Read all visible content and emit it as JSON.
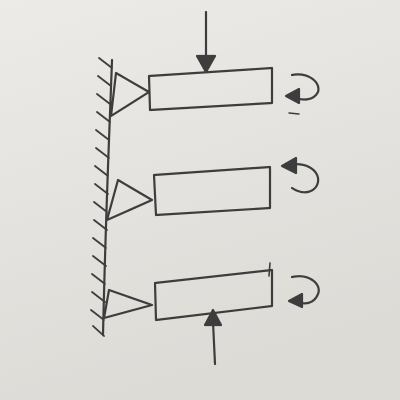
{
  "paper": {
    "top_color": "#ecebe8",
    "bottom_color": "#dddbd6",
    "pencil_color": "#3d3d3d"
  },
  "diagram": {
    "supports": 3,
    "beams": 3,
    "point_loads": 2,
    "moments": 3,
    "moment_direction": "clockwise"
  }
}
